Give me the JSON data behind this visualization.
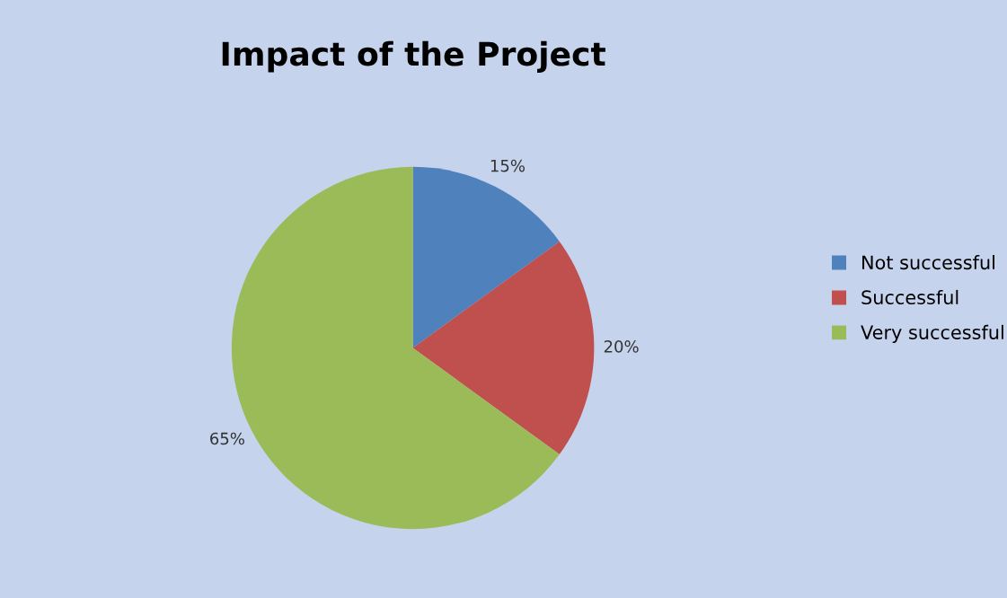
{
  "chart_data": {
    "type": "pie",
    "title": "Impact of the Project",
    "categories": [
      "Not successful",
      "Successful",
      "Very successful"
    ],
    "values": [
      15,
      20,
      65
    ],
    "colors": [
      "#4f81bd",
      "#c0504d",
      "#9bbb59"
    ],
    "value_labels": [
      "15%",
      "20%",
      "65%"
    ],
    "legend": "right"
  }
}
